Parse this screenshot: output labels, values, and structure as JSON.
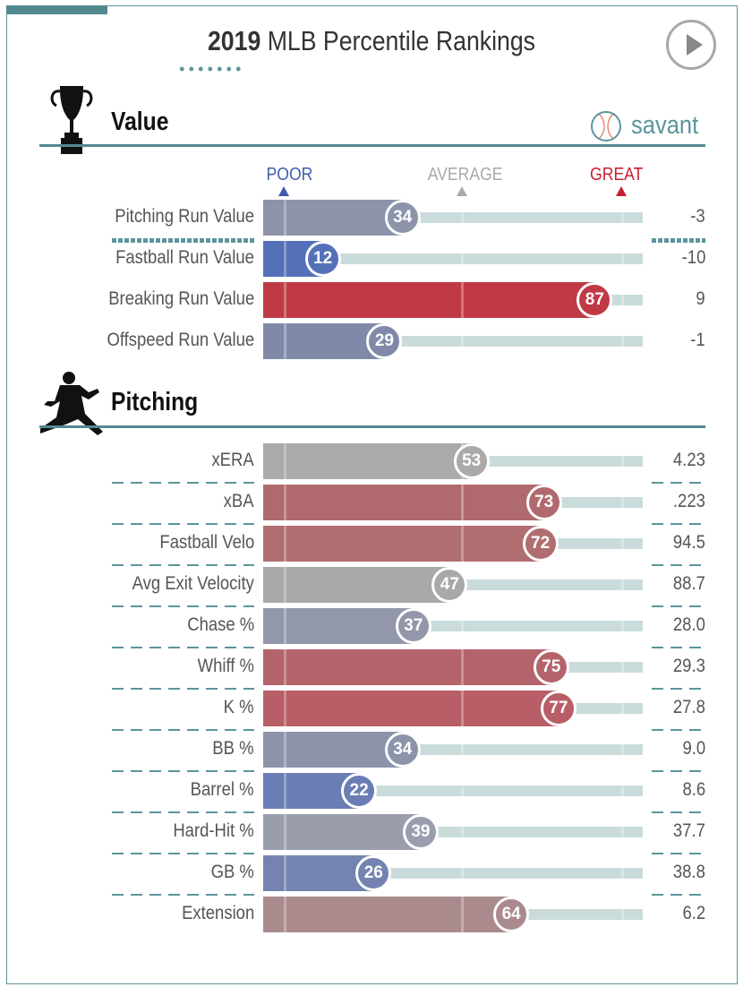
{
  "header": {
    "title_bold": "2019",
    "title_rest": " MLB Percentile Rankings"
  },
  "brand": {
    "name": "savant"
  },
  "chart_data": {
    "type": "bar",
    "title": "2019 MLB Percentile Rankings",
    "xlim": [
      0,
      100
    ],
    "scale_labels": {
      "poor": "POOR",
      "average": "AVERAGE",
      "great": "GREAT"
    },
    "scale_colors": {
      "poor": "#3f5cae",
      "average": "#aaaaaa",
      "great": "#c8202f"
    },
    "sections": [
      {
        "title": "Value",
        "icon": "trophy-icon",
        "rows": [
          {
            "label": "Pitching Run Value",
            "percentile": 34,
            "value": "-3",
            "color": "#8d94aa"
          },
          {
            "label": "Fastball Run Value",
            "percentile": 12,
            "value": "-10",
            "color": "#5470b8"
          },
          {
            "label": "Breaking Run Value",
            "percentile": 87,
            "value": "9",
            "color": "#c03a46"
          },
          {
            "label": "Offspeed Run Value",
            "percentile": 29,
            "value": "-1",
            "color": "#8089a8"
          }
        ]
      },
      {
        "title": "Pitching",
        "icon": "pitcher-icon",
        "rows": [
          {
            "label": "xERA",
            "percentile": 53,
            "value": "4.23",
            "color": "#aaaaaa"
          },
          {
            "label": "xBA",
            "percentile": 73,
            "value": ".223",
            "color": "#b06a6e"
          },
          {
            "label": "Fastball Velo",
            "percentile": 72,
            "value": "94.5",
            "color": "#b06e70"
          },
          {
            "label": "Avg Exit Velocity",
            "percentile": 47,
            "value": "88.7",
            "color": "#a9a9ab"
          },
          {
            "label": "Chase %",
            "percentile": 37,
            "value": "28.0",
            "color": "#9298aa"
          },
          {
            "label": "Whiff %",
            "percentile": 75,
            "value": "29.3",
            "color": "#b5636b"
          },
          {
            "label": "K %",
            "percentile": 77,
            "value": "27.8",
            "color": "#b85e66"
          },
          {
            "label": "BB %",
            "percentile": 34,
            "value": "9.0",
            "color": "#8d94aa"
          },
          {
            "label": "Barrel %",
            "percentile": 22,
            "value": "8.6",
            "color": "#6a7db4"
          },
          {
            "label": "Hard-Hit %",
            "percentile": 39,
            "value": "37.7",
            "color": "#9a9eac"
          },
          {
            "label": "GB %",
            "percentile": 26,
            "value": "38.8",
            "color": "#7483b0"
          },
          {
            "label": "Extension",
            "percentile": 64,
            "value": "6.2",
            "color": "#ab8a8e"
          }
        ]
      }
    ]
  }
}
